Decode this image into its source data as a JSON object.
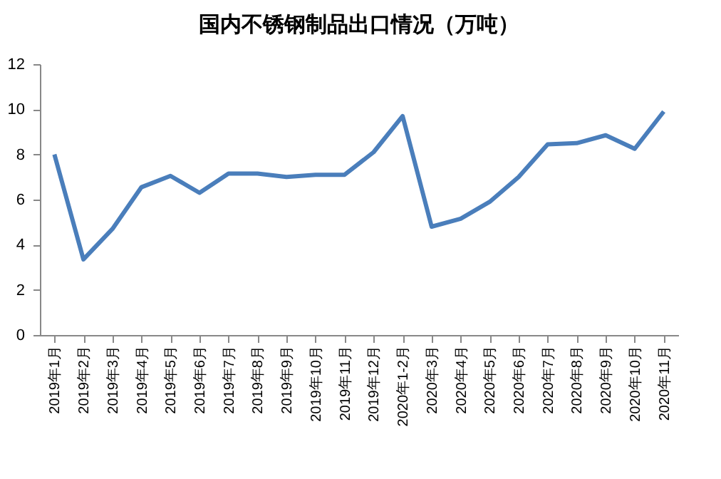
{
  "chart_data": {
    "type": "line",
    "title": "国内不锈钢制品出口情况（万吨）",
    "categories": [
      "2019年1月",
      "2019年2月",
      "2019年3月",
      "2019年4月",
      "2019年5月",
      "2019年6月",
      "2019年7月",
      "2019年8月",
      "2019年9月",
      "2019年10月",
      "2019年11月",
      "2019年12月",
      "2020年1-2月",
      "2020年3月",
      "2020年4月",
      "2020年5月",
      "2020年6月",
      "2020年7月",
      "2020年8月",
      "2020年9月",
      "2020年10月",
      "2020年11月"
    ],
    "series": [
      {
        "color": "#4a7ebb",
        "values": [
          8.0,
          3.35,
          4.7,
          6.55,
          7.05,
          6.3,
          7.15,
          7.15,
          7.0,
          7.1,
          7.1,
          8.1,
          9.7,
          4.8,
          5.15,
          5.9,
          7.0,
          8.45,
          8.5,
          8.85,
          8.25,
          9.9
        ]
      }
    ],
    "ylim": [
      0,
      12
    ],
    "yticks": [
      0,
      2,
      4,
      6,
      8,
      10,
      12
    ],
    "grid": false,
    "legend": false,
    "marker": "none",
    "line_style": "solid"
  }
}
